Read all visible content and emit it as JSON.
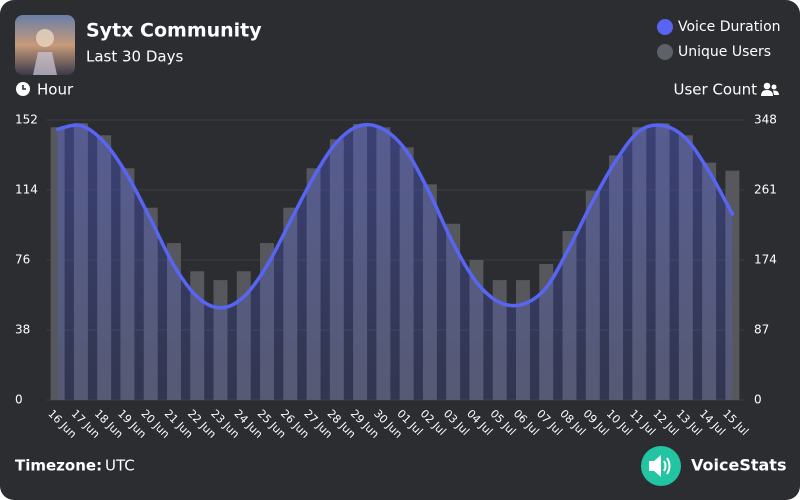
{
  "chart_data": {
    "type": "bar-line",
    "title": "Sytx Community",
    "subtitle": "Last 30 Days",
    "y_label": "Hour",
    "y2_label": "User Count",
    "categories": [
      "16 Jun",
      "17 Jun",
      "18 Jun",
      "19 Jun",
      "20 Jun",
      "21 Jun",
      "22 Jun",
      "23 Jun",
      "24 Jun",
      "25 Jun",
      "26 Jun",
      "27 Jun",
      "28 Jun",
      "29 Jun",
      "30 Jun",
      "01 Jul",
      "02 Jul",
      "03 Jul",
      "04 Jul",
      "05 Jul",
      "06 Jul",
      "07 Jul",
      "08 Jul",
      "09 Jul",
      "10 Jul",
      "11 Jul",
      "12 Jul",
      "13 Jul",
      "14 Jul",
      "15 Jul"
    ],
    "series": [
      {
        "name": "Voice Duration",
        "color": "#5865f2",
        "type": "line",
        "values": [
          147,
          149,
          140,
          122,
          98,
          73,
          56,
          50,
          56,
          73,
          97,
          121,
          140,
          149,
          147,
          135,
          112,
          85,
          64,
          53,
          52,
          61,
          83,
          108,
          130,
          146,
          149,
          142,
          124,
          101
        ]
      },
      {
        "name": "Unique Users",
        "color": "#56585e",
        "type": "bar",
        "axis": "y2",
        "values": [
          339,
          344,
          329,
          288,
          239,
          195,
          160,
          149,
          160,
          195,
          239,
          288,
          324,
          343,
          339,
          314,
          268,
          219,
          174,
          149,
          149,
          169,
          210,
          260,
          304,
          339,
          344,
          329,
          295,
          285
        ]
      }
    ],
    "ylim": [
      0,
      152
    ],
    "yticks": [
      0,
      38,
      76,
      114,
      152
    ],
    "y2lim": [
      0,
      348
    ],
    "y2ticks": [
      0,
      87,
      174,
      261,
      348
    ],
    "grid": true,
    "legend": "top-right"
  },
  "footer": {
    "timezone_label": "Timezone:",
    "timezone": "UTC",
    "brand": "VoiceStats"
  }
}
